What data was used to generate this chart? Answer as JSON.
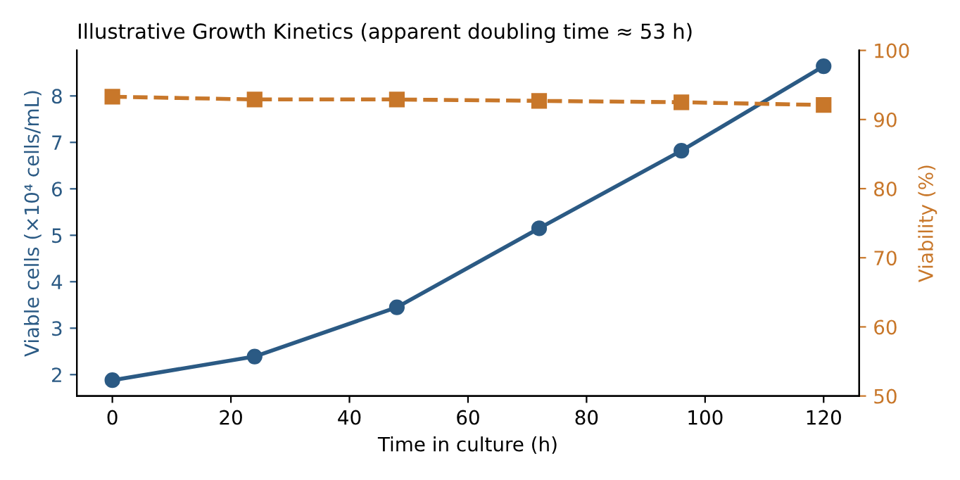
{
  "chart_data": {
    "type": "line",
    "title": "Illustrative Growth Kinetics (apparent doubling time ≈ 53 h)",
    "xlabel": "Time in culture (h)",
    "ylabel": "Viable cells (×10⁴ cells/mL)",
    "y2label": "Viability (%)",
    "x": [
      0,
      24,
      48,
      72,
      96,
      120
    ],
    "series": [
      {
        "color": "#2b5a84",
        "values": [
          1.88,
          2.39,
          3.45,
          5.15,
          6.82,
          8.64
        ],
        "marker": "circle",
        "line_style": "solid"
      },
      {
        "color": "#c8772a",
        "values": [
          93.3,
          92.9,
          92.9,
          92.7,
          92.5,
          92.1
        ],
        "axis": "y2",
        "marker": "square",
        "line_style": "dashed"
      }
    ],
    "xlim": [
      -6,
      126
    ],
    "xticks": [
      0,
      20,
      40,
      60,
      80,
      100,
      120
    ],
    "ylim": [
      1.54,
      8.98
    ],
    "yticks": [
      2,
      3,
      4,
      5,
      6,
      7,
      8
    ],
    "y2lim": [
      50,
      100
    ],
    "y2ticks": [
      50,
      60,
      70,
      80,
      90,
      100
    ],
    "grid": false,
    "legend": false
  }
}
